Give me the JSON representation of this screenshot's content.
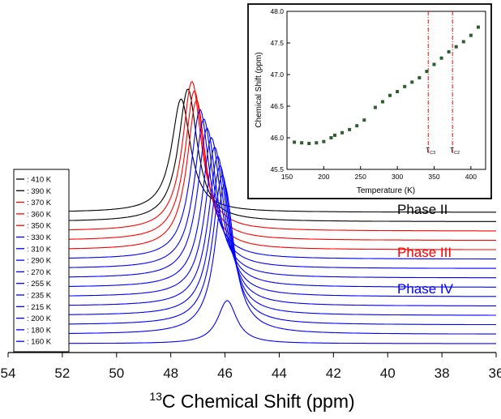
{
  "chart_data": [
    {
      "type": "line",
      "title": "",
      "xlabel_parts": [
        "13",
        "C Chemical Shift (ppm)"
      ],
      "ylabel": "",
      "x_reversed": true,
      "xlim": [
        54,
        36
      ],
      "x_ticks": [
        54,
        52,
        50,
        48,
        46,
        44,
        42,
        40,
        38,
        36
      ],
      "grid": false,
      "legend_position": "left",
      "series": [
        {
          "name": "410 K",
          "color": "#000000",
          "peak_ppm": 47.62,
          "peak_height": 1.0,
          "baseline_ppm_end": 36
        },
        {
          "name": "390 K",
          "color": "#000000",
          "peak_ppm": 47.37,
          "peak_height": 1.17,
          "baseline_ppm_end": 36
        },
        {
          "name": "370 K",
          "color": "#ff0000",
          "peak_ppm": 47.22,
          "peak_height": 1.32,
          "baseline_ppm_end": 36
        },
        {
          "name": "360 K",
          "color": "#ff0000",
          "peak_ppm": 47.13,
          "peak_height": 1.32,
          "baseline_ppm_end": 36
        },
        {
          "name": "350 K",
          "color": "#ff0000",
          "peak_ppm": 47.05,
          "peak_height": 1.32,
          "baseline_ppm_end": 36
        },
        {
          "name": "330 K",
          "color": "#0000ff",
          "peak_ppm": 46.92,
          "peak_height": 1.32,
          "baseline_ppm_end": 36
        },
        {
          "name": "310 K",
          "color": "#0000ff",
          "peak_ppm": 46.78,
          "peak_height": 1.32,
          "baseline_ppm_end": 36
        },
        {
          "name": "290 K",
          "color": "#0000ff",
          "peak_ppm": 46.66,
          "peak_height": 1.32,
          "baseline_ppm_end": 36
        },
        {
          "name": "270 K",
          "color": "#0000ff",
          "peak_ppm": 46.5,
          "peak_height": 1.32,
          "baseline_ppm_end": 36
        },
        {
          "name": "255 K",
          "color": "#0000ff",
          "peak_ppm": 46.38,
          "peak_height": 1.32,
          "baseline_ppm_end": 36
        },
        {
          "name": "235 K",
          "color": "#0000ff",
          "peak_ppm": 46.27,
          "peak_height": 1.32,
          "baseline_ppm_end": 36
        },
        {
          "name": "215 K",
          "color": "#0000ff",
          "peak_ppm": 46.18,
          "peak_height": 1.32,
          "baseline_ppm_end": 36
        },
        {
          "name": "200 K",
          "color": "#0000ff",
          "peak_ppm": 46.1,
          "peak_height": 1.32,
          "baseline_ppm_end": 36
        },
        {
          "name": "180 K",
          "color": "#0000ff",
          "peak_ppm": 46.02,
          "peak_height": 1.32,
          "baseline_ppm_end": 36
        },
        {
          "name": "160 K",
          "color": "#0000ff",
          "peak_ppm": 45.92,
          "peak_height": 0.38,
          "baseline_ppm_end": 36
        }
      ],
      "annotations": [
        {
          "text": "Phase II",
          "color": "#000000"
        },
        {
          "text": "Phase III",
          "color": "#ff0000"
        },
        {
          "text": "Phase IV",
          "color": "#0000ff"
        }
      ]
    },
    {
      "type": "scatter",
      "title": "",
      "xlabel": "Temperature (K)",
      "ylabel": "Chemical Shift (ppm)",
      "xlim": [
        150,
        420
      ],
      "ylim": [
        45.5,
        48.0
      ],
      "x_ticks": [
        150,
        200,
        250,
        300,
        350,
        400
      ],
      "y_ticks": [
        "45.5",
        "46.0",
        "46.5",
        "47.0",
        "47.5",
        "48.0"
      ],
      "grid": false,
      "marker_color": "#2e5d2e",
      "points": [
        {
          "x": 160,
          "y": 45.93
        },
        {
          "x": 170,
          "y": 45.92
        },
        {
          "x": 180,
          "y": 45.91
        },
        {
          "x": 190,
          "y": 45.92
        },
        {
          "x": 200,
          "y": 45.94
        },
        {
          "x": 210,
          "y": 46.0
        },
        {
          "x": 215,
          "y": 46.04
        },
        {
          "x": 225,
          "y": 46.08
        },
        {
          "x": 235,
          "y": 46.13
        },
        {
          "x": 245,
          "y": 46.19
        },
        {
          "x": 255,
          "y": 46.28
        },
        {
          "x": 270,
          "y": 46.48
        },
        {
          "x": 280,
          "y": 46.57
        },
        {
          "x": 290,
          "y": 46.67
        },
        {
          "x": 300,
          "y": 46.73
        },
        {
          "x": 310,
          "y": 46.81
        },
        {
          "x": 320,
          "y": 46.88
        },
        {
          "x": 330,
          "y": 46.95
        },
        {
          "x": 340,
          "y": 47.05
        },
        {
          "x": 350,
          "y": 47.16
        },
        {
          "x": 360,
          "y": 47.26
        },
        {
          "x": 370,
          "y": 47.36
        },
        {
          "x": 380,
          "y": 47.44
        },
        {
          "x": 390,
          "y": 47.52
        },
        {
          "x": 400,
          "y": 47.62
        },
        {
          "x": 410,
          "y": 47.75
        }
      ],
      "vlines": [
        {
          "x": 342,
          "label_main": "T",
          "label_sub": "C3",
          "color": "#ff0000"
        },
        {
          "x": 375,
          "label_main": "T",
          "label_sub": "C2",
          "color": "#ff0000"
        }
      ]
    }
  ]
}
